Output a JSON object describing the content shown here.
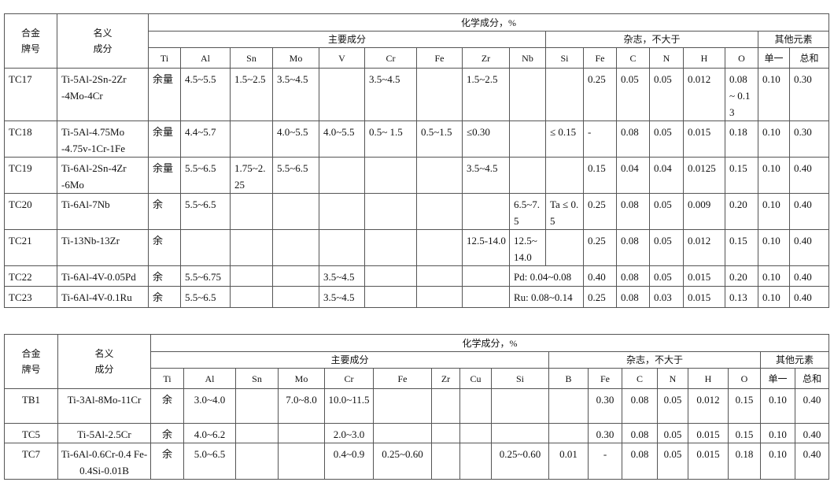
{
  "table1": {
    "header": {
      "grade": "合金\n牌号",
      "nominal": "名义\n成分",
      "chem": "化学成分，%",
      "main": "主要成分",
      "impurity": "杂志，不大于",
      "other": "其他元素",
      "main_cols": [
        "Ti",
        "Al",
        "Sn",
        "Mo",
        "V",
        "Cr",
        "Fe",
        "Zr",
        "Nb"
      ],
      "impurity_cols": [
        "Si",
        "Fe",
        "C",
        "N",
        "H",
        "O"
      ],
      "other_cols": [
        "单一",
        "总和"
      ]
    },
    "rows": [
      [
        "TC17",
        "Ti-5Al-2Sn-2Zr -4Mo-4Cr",
        "余量",
        "4.5~5.5",
        "1.5~2.5",
        "3.5~4.5",
        "",
        "3.5~4.5",
        "",
        "1.5~2.5",
        "",
        "",
        "0.25",
        "0.05",
        "0.05",
        "0.012",
        "0.08 ~ 0.13",
        "0.10",
        "0.30"
      ],
      [
        "TC18",
        "Ti-5Al-4.75Mo -4.75v-1Cr-1Fe",
        "余量",
        "4.4~5.7",
        "",
        "4.0~5.5",
        "4.0~5.5",
        "0.5~ 1.5",
        "0.5~1.5",
        "≤0.30",
        "",
        "≤ 0.15",
        "-",
        "0.08",
        "0.05",
        "0.015",
        "0.18",
        "0.10",
        "0.30"
      ],
      [
        "TC19",
        "Ti-6Al-2Sn-4Zr -6Mo",
        "余量",
        "5.5~6.5",
        "1.75~2.25",
        "5.5~6.5",
        "",
        "",
        "",
        "3.5~4.5",
        "",
        "",
        "0.15",
        "0.04",
        "0.04",
        "0.0125",
        "0.15",
        "0.10",
        "0.40"
      ],
      [
        "TC20",
        "Ti-6Al-7Nb",
        "余",
        "5.5~6.5",
        "",
        "",
        "",
        "",
        "",
        "",
        "6.5~7.5",
        "Ta ≤ 0.5",
        "0.25",
        "0.08",
        "0.05",
        "0.009",
        "0.20",
        "0.10",
        "0.40"
      ],
      [
        "TC21",
        "Ti-13Nb-13Zr",
        "余",
        "",
        "",
        "",
        "",
        "",
        "",
        "12.5-14.0",
        "12.5~ 14.0",
        "",
        "0.25",
        "0.08",
        "0.05",
        "0.012",
        "0.15",
        "0.10",
        "0.40"
      ],
      [
        "TC22",
        "Ti-6Al-4V-0.05Pd",
        "余",
        "5.5~6.75",
        "",
        "",
        "3.5~4.5",
        "",
        "",
        "",
        {
          "text": "Pd: 0.04~0.08",
          "span": 2
        },
        "0.40",
        "0.08",
        "0.05",
        "0.015",
        "0.20",
        "0.10",
        "0.40"
      ],
      [
        "TC23",
        "Ti-6Al-4V-0.1Ru",
        "余",
        "5.5~6.5",
        "",
        "",
        "3.5~4.5",
        "",
        "",
        "",
        {
          "text": "Ru: 0.08~0.14",
          "span": 2
        },
        "0.25",
        "0.08",
        "0.03",
        "0.015",
        "0.13",
        "0.10",
        "0.40"
      ]
    ]
  },
  "table2": {
    "header": {
      "grade": "合金\n牌号",
      "nominal": "名义\n成分",
      "chem": "化学成分，%",
      "main": "主要成分",
      "impurity": "杂志，不大于",
      "other": "其他元素",
      "main_cols": [
        "Ti",
        "Al",
        "Sn",
        "Mo",
        "Cr",
        "Fe",
        "Zr",
        "Cu",
        "Si"
      ],
      "impurity_cols": [
        "B",
        "Fe",
        "C",
        "N",
        "H",
        "O"
      ],
      "other_cols": [
        "单一",
        "总和"
      ]
    },
    "rows": [
      [
        "TB1",
        "Ti-3Al-8Mo-11Cr",
        "余",
        "3.0~4.0",
        "",
        "7.0~8.0",
        "10.0~11.5",
        "",
        "",
        "",
        "",
        "",
        "0.30",
        "0.08",
        "0.05",
        "0.012",
        "0.15",
        "0.10",
        "0.40"
      ],
      [
        "TC5",
        "Ti-5Al-2.5Cr",
        "余",
        "4.0~6.2",
        "",
        "",
        "2.0~3.0",
        "",
        "",
        "",
        "",
        "",
        "0.30",
        "0.08",
        "0.05",
        "0.015",
        "0.15",
        "0.10",
        "0.40"
      ],
      [
        "TC7",
        "Ti-6Al-0.6Cr-0.4 Fe-0.4Si-0.01B",
        "余",
        "5.0~6.5",
        "",
        "",
        "0.4~0.9",
        "0.25~0.60",
        "",
        "",
        "0.25~0.60",
        "0.01",
        "-",
        "0.08",
        "0.05",
        "0.015",
        "0.18",
        "0.10",
        "0.40"
      ]
    ]
  }
}
